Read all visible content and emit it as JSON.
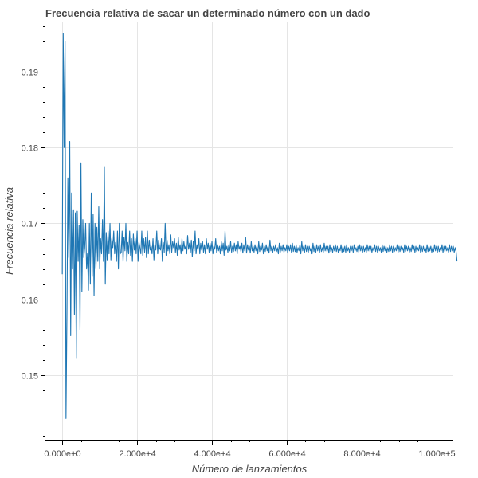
{
  "chart_data": {
    "type": "line",
    "title": "Frecuencia relativa de sacar un determinado número con un dado",
    "xlabel": "Número de lanzamientos",
    "ylabel": "Frecuencia relativa",
    "xlim": [
      -4500,
      104500
    ],
    "ylim": [
      0.1415,
      0.1965
    ],
    "x_ticks": [
      0,
      20000,
      40000,
      60000,
      80000,
      100000
    ],
    "x_tick_labels": [
      "0.000e+0",
      "2.000e+4",
      "4.000e+4",
      "6.000e+4",
      "8.000e+4",
      "1.000e+5"
    ],
    "y_ticks": [
      0.15,
      0.16,
      0.17,
      0.18,
      0.19
    ],
    "y_tick_labels": [
      "0.15",
      "0.16",
      "0.17",
      "0.18",
      "0.19"
    ],
    "grid": true,
    "series": [
      {
        "name": "Frecuencia relativa",
        "color": "#1f77b4",
        "x_start": 0,
        "x_step": 250,
        "values": [
          0.1633,
          0.195,
          0.18,
          0.194,
          0.1443,
          0.158,
          0.176,
          0.1655,
          0.1808,
          0.1552,
          0.174,
          0.164,
          0.1718,
          0.158,
          0.1714,
          0.1523,
          0.1716,
          0.165,
          0.1698,
          0.156,
          0.178,
          0.161,
          0.1705,
          0.1655,
          0.1668,
          0.17,
          0.164,
          0.166,
          0.1612,
          0.17,
          0.162,
          0.174,
          0.163,
          0.1712,
          0.1605,
          0.17,
          0.164,
          0.1695,
          0.165,
          0.1722,
          0.164,
          0.168,
          0.166,
          0.1705,
          0.165,
          0.1775,
          0.162,
          0.1688,
          0.1652,
          0.169,
          0.166,
          0.17,
          0.1652,
          0.168,
          0.1668,
          0.169,
          0.166,
          0.1675,
          0.165,
          0.169,
          0.164,
          0.17,
          0.166,
          0.1662,
          0.169,
          0.165,
          0.1682,
          0.1664,
          0.17,
          0.165,
          0.1675,
          0.166,
          0.169,
          0.1658,
          0.168,
          0.165,
          0.1686,
          0.1665,
          0.168,
          0.166,
          0.169,
          0.165,
          0.1675,
          0.1668,
          0.166,
          0.169,
          0.1658,
          0.168,
          0.1662,
          0.1682,
          0.1655,
          0.169,
          0.166,
          0.1678,
          0.1665,
          0.167,
          0.166,
          0.168,
          0.1652,
          0.1672,
          0.1665,
          0.169,
          0.166,
          0.1678,
          0.1668,
          0.1665,
          0.168,
          0.165,
          0.1675,
          0.1662,
          0.17,
          0.1658,
          0.1678,
          0.1664,
          0.1672,
          0.166,
          0.1685,
          0.1662,
          0.1676,
          0.1668,
          0.168,
          0.1662,
          0.1674,
          0.1658,
          0.1682,
          0.1665,
          0.1672,
          0.166,
          0.168,
          0.1664,
          0.1676,
          0.1666,
          0.167,
          0.166,
          0.1684,
          0.1666,
          0.1674,
          0.1662,
          0.1678,
          0.1656,
          0.1676,
          0.1664,
          0.169,
          0.166,
          0.1672,
          0.1666,
          0.168,
          0.166,
          0.1674,
          0.1665,
          0.1676,
          0.1662,
          0.1672,
          0.166,
          0.168,
          0.1666,
          0.1674,
          0.1662,
          0.1674,
          0.1664,
          0.1676,
          0.166,
          0.167,
          0.1666,
          0.168,
          0.1662,
          0.1672,
          0.1664,
          0.167,
          0.166,
          0.1676,
          0.1664,
          0.1674,
          0.1658,
          0.169,
          0.1665,
          0.167,
          0.1662,
          0.1672,
          0.1664,
          0.1676,
          0.1662,
          0.167,
          0.1663,
          0.1674,
          0.1664,
          0.1672,
          0.166,
          0.1676,
          0.1666,
          0.167,
          0.1663,
          0.1674,
          0.1661,
          0.1672,
          0.1664,
          0.1682,
          0.1661,
          0.1672,
          0.1665,
          0.167,
          0.1661,
          0.1676,
          0.1664,
          0.167,
          0.1662,
          0.1672,
          0.1664,
          0.167,
          0.166,
          0.1676,
          0.1663,
          0.167,
          0.1665,
          0.1674,
          0.166,
          0.167,
          0.1663,
          0.1672,
          0.1664,
          0.167,
          0.1661,
          0.1678,
          0.1664,
          0.167,
          0.1662,
          0.167,
          0.1664,
          0.1672,
          0.1663,
          0.1668,
          0.166,
          0.1674,
          0.1662,
          0.167,
          0.1664,
          0.1672,
          0.1662,
          0.1668,
          0.1664,
          0.1672,
          0.1661,
          0.167,
          0.1664,
          0.1672,
          0.1662,
          0.1674,
          0.1663,
          0.167,
          0.1663,
          0.1672,
          0.1662,
          0.1668,
          0.1664,
          0.1672,
          0.166,
          0.1676,
          0.1664,
          0.167,
          0.1662,
          0.1672,
          0.1663,
          0.167,
          0.1662,
          0.167,
          0.1664,
          0.1668,
          0.166,
          0.1674,
          0.1663,
          0.167,
          0.1662,
          0.1672,
          0.1664,
          0.167,
          0.1662,
          0.1672,
          0.1663,
          0.1668,
          0.1662,
          0.1674,
          0.1664,
          0.167,
          0.1663,
          0.167,
          0.1661,
          0.1672,
          0.1663,
          0.1668,
          0.1662,
          0.167,
          0.1664,
          0.1672,
          0.1663,
          0.167,
          0.1662,
          0.1668,
          0.1664,
          0.1672,
          0.1662,
          0.167,
          0.1663,
          0.167,
          0.1662,
          0.1672,
          0.1664,
          0.1668,
          0.1662,
          0.167,
          0.1664,
          0.167,
          0.1662,
          0.1672,
          0.1664,
          0.1668,
          0.1663,
          0.167,
          0.1662,
          0.1672,
          0.1664,
          0.167,
          0.1662,
          0.167,
          0.1663,
          0.1668,
          0.1662,
          0.1672,
          0.1664,
          0.167,
          0.1663,
          0.167,
          0.1662,
          0.1668,
          0.1664,
          0.1672,
          0.1663,
          0.167,
          0.1662,
          0.167,
          0.1664,
          0.1668,
          0.1662,
          0.1672,
          0.1663,
          0.167,
          0.1664,
          0.167,
          0.1662,
          0.1668,
          0.1663,
          0.1672,
          0.1664,
          0.167,
          0.1662,
          0.167,
          0.1663,
          0.1668,
          0.1664,
          0.1672,
          0.1662,
          0.167,
          0.1663,
          0.167,
          0.1664,
          0.1668,
          0.1662,
          0.1672,
          0.1663,
          0.167,
          0.1664,
          0.167,
          0.1662,
          0.1668,
          0.1663,
          0.1672,
          0.1664,
          0.167,
          0.1662,
          0.167,
          0.1663,
          0.1668,
          0.1664,
          0.1672,
          0.1662,
          0.167,
          0.1663,
          0.167,
          0.1664,
          0.1668,
          0.1662,
          0.1672,
          0.1663,
          0.167,
          0.1664,
          0.167,
          0.1662,
          0.1668,
          0.1663,
          0.1672,
          0.1664,
          0.167,
          0.1662,
          0.167,
          0.1663,
          0.1668,
          0.1664,
          0.1672,
          0.1662,
          0.167,
          0.1663,
          0.167,
          0.1664,
          0.1668,
          0.1662,
          0.1672,
          0.1663,
          0.167,
          0.1664,
          0.167,
          0.1662,
          0.1668,
          0.1663,
          0.165
        ]
      }
    ]
  }
}
